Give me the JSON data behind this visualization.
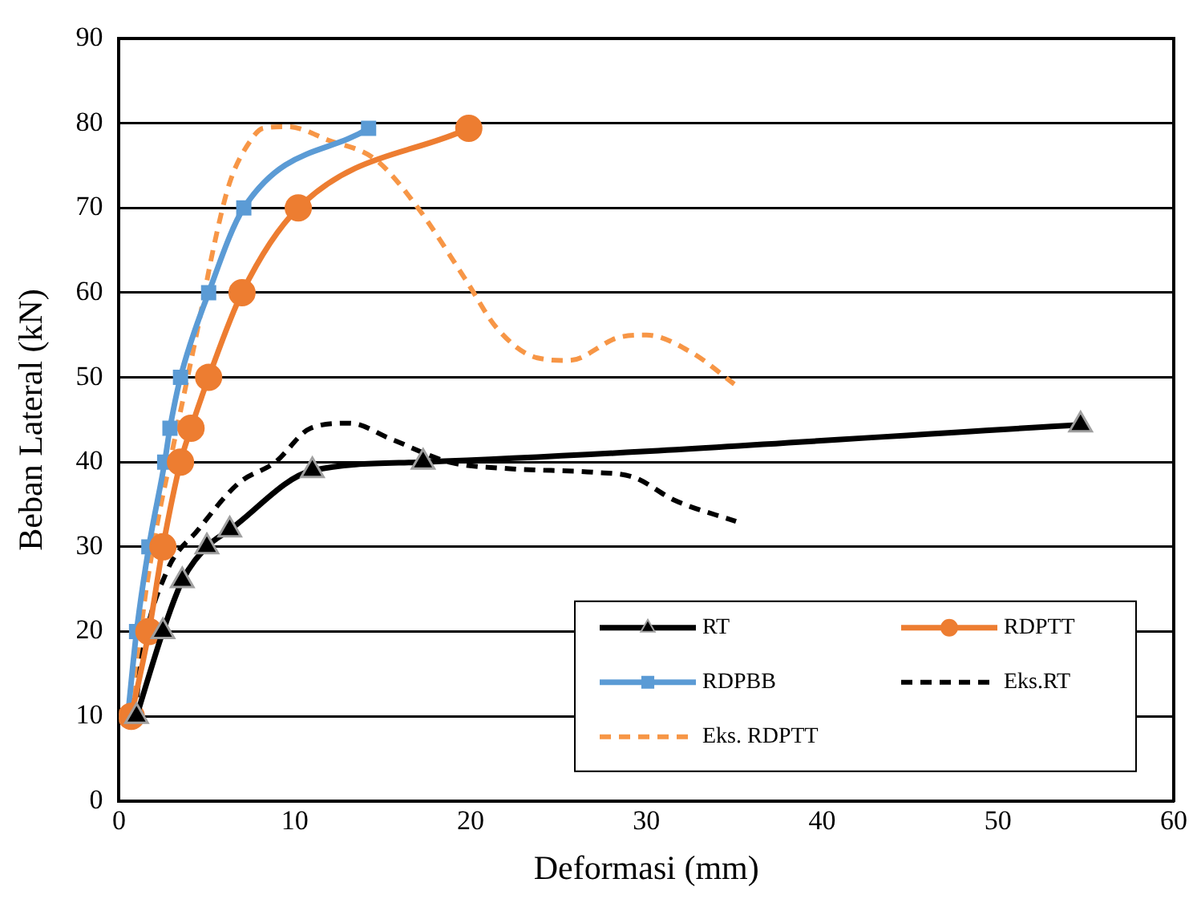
{
  "chart_data": {
    "type": "line",
    "xlabel": "Deformasi (mm)",
    "ylabel": "Beban Lateral (kN)",
    "xlim": [
      0,
      60
    ],
    "xticks": [
      0,
      10,
      20,
      30,
      40,
      50,
      60
    ],
    "ylim": [
      0,
      90
    ],
    "yticks": [
      0,
      10,
      20,
      30,
      40,
      50,
      60,
      70,
      80,
      90
    ],
    "grid": "y",
    "legend": "bottom right",
    "series": [
      {
        "name": "RT",
        "color": "#000000",
        "marker": "triangle",
        "line_style": "solid",
        "x": [
          1.0,
          2.5,
          3.6,
          5.0,
          6.3,
          11.0,
          17.3,
          54.7
        ],
        "values": [
          10,
          20,
          26,
          30,
          32,
          39,
          40,
          44.4
        ]
      },
      {
        "name": "RDPTT",
        "color": "#ed7d31",
        "marker": "circle",
        "line_style": "solid",
        "x": [
          0.7,
          1.7,
          2.5,
          3.5,
          4.1,
          5.1,
          7.0,
          10.2,
          19.9
        ],
        "values": [
          10,
          20,
          30,
          40,
          44,
          50,
          60,
          70,
          79.4
        ]
      },
      {
        "name": "RDPBB",
        "color": "#5b9bd5",
        "marker": "square",
        "line_style": "solid",
        "x": [
          0.5,
          1.0,
          1.7,
          2.6,
          2.9,
          3.5,
          5.1,
          7.1,
          14.2
        ],
        "values": [
          10,
          20,
          30,
          40,
          44,
          50,
          60,
          70,
          79.4
        ]
      },
      {
        "name": "Eks.RT",
        "color": "#000000",
        "marker": "none",
        "line_style": "dashed",
        "x": [
          0.9,
          1.3,
          2.7,
          4.5,
          6.8,
          8.9,
          10.9,
          13.1,
          15.5,
          18.8,
          22.4,
          27.0,
          29.3,
          31.6,
          35.1
        ],
        "values": [
          10,
          17,
          27,
          32,
          37.5,
          40,
          44,
          44.6,
          42.7,
          40,
          39.2,
          38.8,
          38.2,
          35.5,
          33
        ]
      },
      {
        "name": "Eks. RDPTT",
        "color": "#f79646",
        "marker": "none",
        "line_style": "dashed",
        "x": [
          0.8,
          1.3,
          2.0,
          3.1,
          4.5,
          5.4,
          6.3,
          7.5,
          8.2,
          9.6,
          11.9,
          14.6,
          16.9,
          19.7,
          21.5,
          23.8,
          25.6,
          28.4,
          30.0,
          32.6,
          35.0
        ],
        "values": [
          10,
          21,
          30.7,
          42,
          56,
          65.5,
          73,
          78,
          79.4,
          79.6,
          78,
          75.7,
          70.3,
          61.6,
          55.8,
          52.3,
          52,
          54.7,
          55,
          52.9,
          49.2
        ]
      }
    ]
  }
}
